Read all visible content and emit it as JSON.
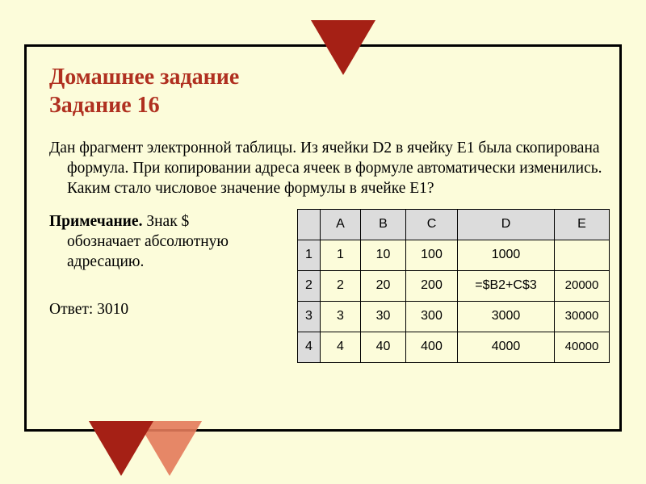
{
  "title_line1": "Домашнее задание",
  "title_line2": "Задание 16",
  "question": "Дан фрагмент электронной таблицы. Из ячейки D2 в ячейку E1 была скопирована формула. При копировании адреса ячеек в формуле автоматически изменились. Каким стало числовое значение формулы в ячейке E1?",
  "note_label": "Примечание.",
  "note_text": " Знак $ обозначает абсолютную адресацию.",
  "answer": "Ответ: 3010",
  "table": {
    "columns": [
      "",
      "A",
      "B",
      "C",
      "D",
      "E"
    ],
    "col_widths": [
      "col-r",
      "col-a",
      "col-b",
      "col-c",
      "col-d",
      "col-e"
    ],
    "header_bg": "#dcdcdc",
    "cell_bg": "#fcfcda",
    "border_color": "#000000",
    "rows": [
      {
        "head": "1",
        "cells": [
          "1",
          "10",
          "100",
          "1000",
          ""
        ]
      },
      {
        "head": "2",
        "cells": [
          "2",
          "20",
          "200",
          "=$B2+C$3",
          "20000"
        ]
      },
      {
        "head": "3",
        "cells": [
          "3",
          "30",
          "300",
          "3000",
          "30000"
        ]
      },
      {
        "head": "4",
        "cells": [
          "4",
          "40",
          "400",
          "4000",
          "40000"
        ]
      }
    ]
  },
  "decor": {
    "triangle_color_dark": "#a52015",
    "triangle_color_light": "#e37a5a",
    "page_bg": "#fcfcda"
  }
}
